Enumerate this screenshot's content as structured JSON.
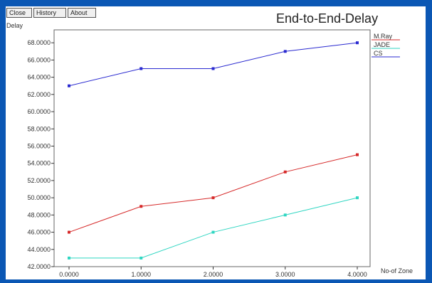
{
  "window": {
    "buttons": {
      "close": "Close",
      "history": "History",
      "about": "About"
    }
  },
  "colors": {
    "frame": "#0b57b4",
    "plot_border": "#666666"
  },
  "chart_data": {
    "type": "line",
    "title": "End-to-End-Delay",
    "xlabel": "No-of Zone",
    "ylabel": "Delay",
    "x": [
      0,
      1,
      2,
      3,
      4
    ],
    "x_tick_labels": [
      "0.0000",
      "1.0000",
      "2.0000",
      "3.0000",
      "4.0000"
    ],
    "ylim": [
      42,
      69.5
    ],
    "y_ticks": [
      42,
      44,
      46,
      48,
      50,
      52,
      54,
      56,
      58,
      60,
      62,
      64,
      66,
      68
    ],
    "y_tick_labels": [
      "42.0000",
      "44.0000",
      "46.0000",
      "48.0000",
      "50.0000",
      "52.0000",
      "54.0000",
      "56.0000",
      "58.0000",
      "60.0000",
      "62.0000",
      "64.0000",
      "66.0000",
      "68.0000"
    ],
    "grid": false,
    "legend_position": "right-top",
    "series": [
      {
        "name": "M.Ray",
        "color": "#d62a2a",
        "values": [
          46,
          49,
          50,
          53,
          55
        ]
      },
      {
        "name": "JADE",
        "color": "#2fd6c2",
        "values": [
          43,
          43,
          46,
          48,
          50
        ]
      },
      {
        "name": "CS",
        "color": "#2a2ad0",
        "values": [
          63,
          65,
          65,
          67,
          68
        ]
      }
    ]
  }
}
